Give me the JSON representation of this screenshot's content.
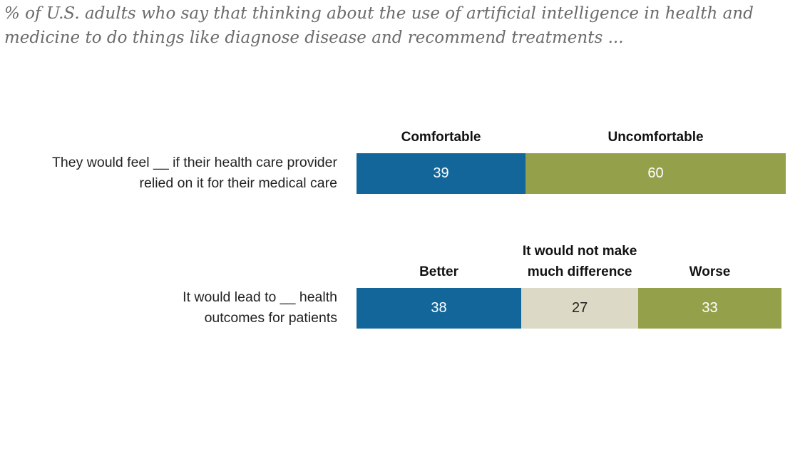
{
  "chart_data": {
    "type": "bar",
    "stacked": true,
    "orientation": "horizontal",
    "title": "% of U.S. adults who say that thinking about the use of artificial intelligence in health and medicine to do things like diagnose disease and recommend treatments ...",
    "rows": [
      {
        "label_lines": [
          "They would feel __ if their health care provider",
          "relied on it for their medical care"
        ],
        "segments": [
          {
            "name": "Comfortable",
            "value": 39,
            "color": "#136699",
            "text_color": "#ffffff"
          },
          {
            "name": "Uncomfortable",
            "value": 60,
            "color": "#95a04b",
            "text_color": "#ffffff"
          }
        ]
      },
      {
        "label_lines": [
          "It would lead to __ health",
          "outcomes for patients"
        ],
        "segments": [
          {
            "name": "Better",
            "value": 38,
            "color": "#136699",
            "text_color": "#ffffff"
          },
          {
            "name_lines": [
              "It would not make",
              "much difference"
            ],
            "name": "It would not make much difference",
            "value": 27,
            "color": "#dcd9c6",
            "text_color": "#222222"
          },
          {
            "name": "Worse",
            "value": 33,
            "color": "#95a04b",
            "text_color": "#ffffff"
          }
        ]
      }
    ],
    "xlim": [
      0,
      100
    ]
  }
}
